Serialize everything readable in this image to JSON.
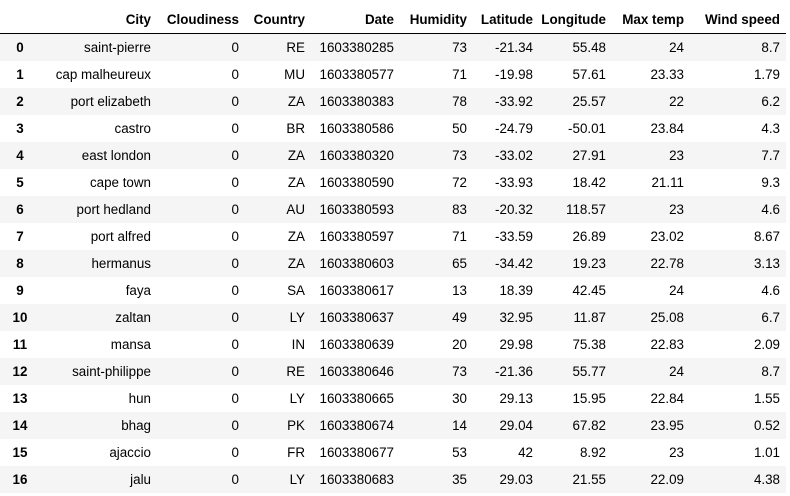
{
  "table": {
    "index_header": "",
    "columns": [
      "City",
      "Cloudiness",
      "Country",
      "Date",
      "Humidity",
      "Latitude",
      "Longitude",
      "Max temp",
      "Wind speed"
    ],
    "rows": [
      {
        "index": "0",
        "city": "saint-pierre",
        "cloudiness": "0",
        "country": "RE",
        "date": "1603380285",
        "humidity": "73",
        "latitude": "-21.34",
        "longitude": "55.48",
        "max_temp": "24",
        "wind_speed": "8.7"
      },
      {
        "index": "1",
        "city": "cap malheureux",
        "cloudiness": "0",
        "country": "MU",
        "date": "1603380577",
        "humidity": "71",
        "latitude": "-19.98",
        "longitude": "57.61",
        "max_temp": "23.33",
        "wind_speed": "1.79"
      },
      {
        "index": "2",
        "city": "port elizabeth",
        "cloudiness": "0",
        "country": "ZA",
        "date": "1603380383",
        "humidity": "78",
        "latitude": "-33.92",
        "longitude": "25.57",
        "max_temp": "22",
        "wind_speed": "6.2"
      },
      {
        "index": "3",
        "city": "castro",
        "cloudiness": "0",
        "country": "BR",
        "date": "1603380586",
        "humidity": "50",
        "latitude": "-24.79",
        "longitude": "-50.01",
        "max_temp": "23.84",
        "wind_speed": "4.3"
      },
      {
        "index": "4",
        "city": "east london",
        "cloudiness": "0",
        "country": "ZA",
        "date": "1603380320",
        "humidity": "73",
        "latitude": "-33.02",
        "longitude": "27.91",
        "max_temp": "23",
        "wind_speed": "7.7"
      },
      {
        "index": "5",
        "city": "cape town",
        "cloudiness": "0",
        "country": "ZA",
        "date": "1603380590",
        "humidity": "72",
        "latitude": "-33.93",
        "longitude": "18.42",
        "max_temp": "21.11",
        "wind_speed": "9.3"
      },
      {
        "index": "6",
        "city": "port hedland",
        "cloudiness": "0",
        "country": "AU",
        "date": "1603380593",
        "humidity": "83",
        "latitude": "-20.32",
        "longitude": "118.57",
        "max_temp": "23",
        "wind_speed": "4.6"
      },
      {
        "index": "7",
        "city": "port alfred",
        "cloudiness": "0",
        "country": "ZA",
        "date": "1603380597",
        "humidity": "71",
        "latitude": "-33.59",
        "longitude": "26.89",
        "max_temp": "23.02",
        "wind_speed": "8.67"
      },
      {
        "index": "8",
        "city": "hermanus",
        "cloudiness": "0",
        "country": "ZA",
        "date": "1603380603",
        "humidity": "65",
        "latitude": "-34.42",
        "longitude": "19.23",
        "max_temp": "22.78",
        "wind_speed": "3.13"
      },
      {
        "index": "9",
        "city": "faya",
        "cloudiness": "0",
        "country": "SA",
        "date": "1603380617",
        "humidity": "13",
        "latitude": "18.39",
        "longitude": "42.45",
        "max_temp": "24",
        "wind_speed": "4.6"
      },
      {
        "index": "10",
        "city": "zaltan",
        "cloudiness": "0",
        "country": "LY",
        "date": "1603380637",
        "humidity": "49",
        "latitude": "32.95",
        "longitude": "11.87",
        "max_temp": "25.08",
        "wind_speed": "6.7"
      },
      {
        "index": "11",
        "city": "mansa",
        "cloudiness": "0",
        "country": "IN",
        "date": "1603380639",
        "humidity": "20",
        "latitude": "29.98",
        "longitude": "75.38",
        "max_temp": "22.83",
        "wind_speed": "2.09"
      },
      {
        "index": "12",
        "city": "saint-philippe",
        "cloudiness": "0",
        "country": "RE",
        "date": "1603380646",
        "humidity": "73",
        "latitude": "-21.36",
        "longitude": "55.77",
        "max_temp": "24",
        "wind_speed": "8.7"
      },
      {
        "index": "13",
        "city": "hun",
        "cloudiness": "0",
        "country": "LY",
        "date": "1603380665",
        "humidity": "30",
        "latitude": "29.13",
        "longitude": "15.95",
        "max_temp": "22.84",
        "wind_speed": "1.55"
      },
      {
        "index": "14",
        "city": "bhag",
        "cloudiness": "0",
        "country": "PK",
        "date": "1603380674",
        "humidity": "14",
        "latitude": "29.04",
        "longitude": "67.82",
        "max_temp": "23.95",
        "wind_speed": "0.52"
      },
      {
        "index": "15",
        "city": "ajaccio",
        "cloudiness": "0",
        "country": "FR",
        "date": "1603380677",
        "humidity": "53",
        "latitude": "42",
        "longitude": "8.92",
        "max_temp": "23",
        "wind_speed": "1.01"
      },
      {
        "index": "16",
        "city": "jalu",
        "cloudiness": "0",
        "country": "LY",
        "date": "1603380683",
        "humidity": "35",
        "latitude": "29.03",
        "longitude": "21.55",
        "max_temp": "22.09",
        "wind_speed": "4.38"
      }
    ]
  }
}
